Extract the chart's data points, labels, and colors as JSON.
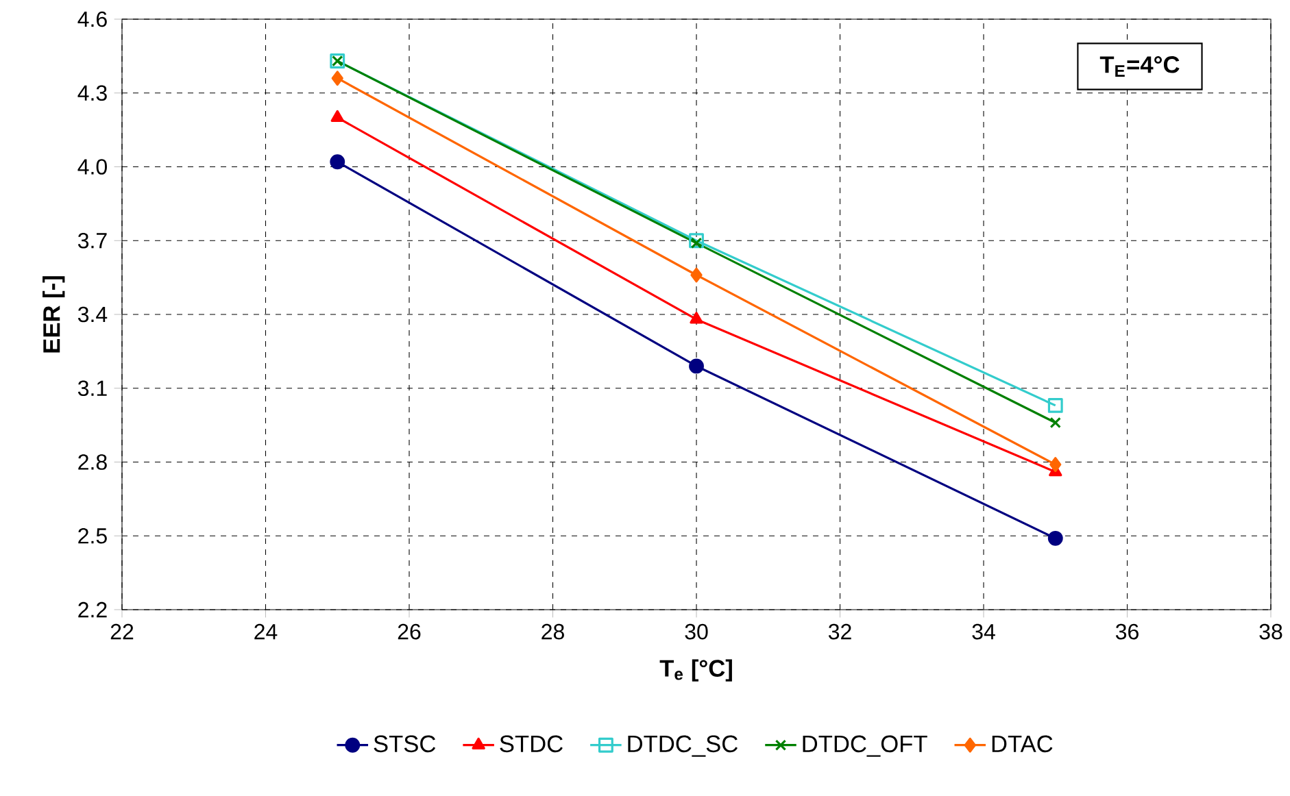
{
  "chart_data": {
    "type": "line",
    "xlabel": "T$_{e}$ [°C]",
    "ylabel": "EER [-]",
    "annotations": [
      "T$_{E}$=4°C"
    ],
    "x": [
      25,
      30,
      35
    ],
    "xlim": [
      22,
      38
    ],
    "xticks": [
      22,
      24,
      26,
      28,
      30,
      32,
      34,
      36,
      38
    ],
    "ylim": [
      2.2,
      4.6
    ],
    "yticks": [
      2.2,
      2.5,
      2.8,
      3.1,
      3.4,
      3.7,
      {
        "value": 4,
        "label": "4.0"
      },
      4.3,
      4.6
    ],
    "grid": true,
    "legend": "bottom",
    "line_style": "solid",
    "series": [
      {
        "name": "STSC",
        "color": "#000080",
        "marker": "circle",
        "values": [
          4.02,
          3.19,
          2.49
        ]
      },
      {
        "name": "STDC",
        "color": "#ff0000",
        "marker": "triangle",
        "values": [
          4.2,
          3.38,
          2.76
        ]
      },
      {
        "name": "DTDC_SC",
        "color": "#33cccc",
        "marker": "square",
        "values": [
          4.43,
          3.7,
          3.03
        ]
      },
      {
        "name": "DTDC_OFT",
        "color": "#008000",
        "marker": "cross",
        "values": [
          4.43,
          3.69,
          2.96
        ]
      },
      {
        "name": "DTAC",
        "color": "#ff6600",
        "marker": "diamond",
        "values": [
          4.36,
          3.56,
          2.79
        ]
      }
    ]
  }
}
